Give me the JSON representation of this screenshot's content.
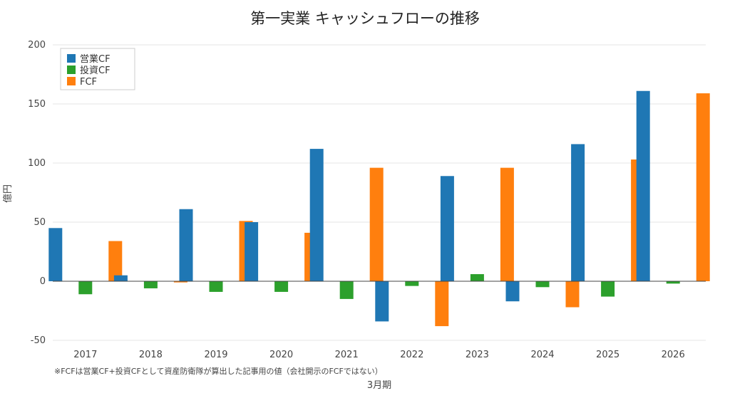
{
  "chart_data": {
    "type": "bar",
    "title": "第一実業 キャッシュフローの推移",
    "xlabel": "3月期",
    "ylabel": "億円",
    "note": "※FCFは営業CF+投資CFとして資産防衛隊が算出した記事用の値（会社開示のFCFではない）",
    "categories": [
      "2017",
      "2018",
      "2019",
      "2020",
      "2021",
      "2022",
      "2023",
      "2024",
      "2025",
      "2026"
    ],
    "series": [
      {
        "name": "営業CF",
        "color": "#1f77b4",
        "values": [
          45,
          5,
          61,
          50,
          112,
          -34,
          89,
          -17,
          116,
          161
        ]
      },
      {
        "name": "投資CF",
        "color": "#2ca02c",
        "values": [
          -11,
          -6,
          -9,
          -9,
          -15,
          -4,
          6,
          -5,
          -13,
          -2
        ]
      },
      {
        "name": "FCF",
        "color": "#ff7f0e",
        "values": [
          34,
          -1,
          51,
          41,
          96,
          -38,
          96,
          -22,
          103,
          159
        ]
      }
    ],
    "yticks": [
      "-50",
      "0",
      "50",
      "100",
      "150",
      "200"
    ],
    "ylim": [
      -50,
      200
    ],
    "grid": true,
    "legend_position": "top-left"
  }
}
